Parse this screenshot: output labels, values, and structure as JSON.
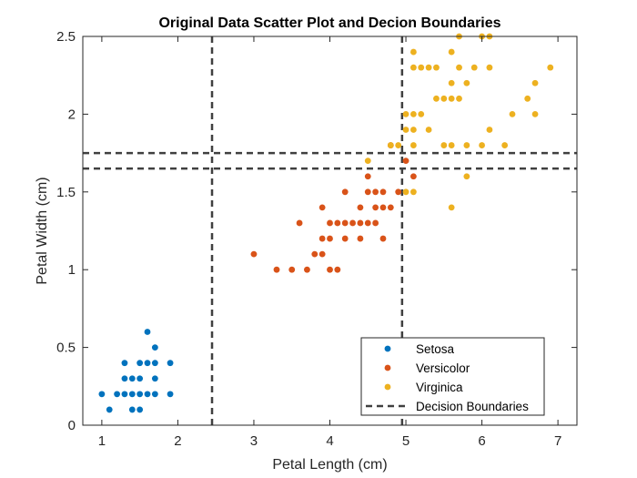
{
  "chart_data": {
    "type": "scatter",
    "title": "Original Data Scatter Plot and Decion Boundaries",
    "xlabel": "Petal Length (cm)",
    "ylabel": "Petal Width (cm)",
    "xlim": [
      0.75,
      7.25
    ],
    "ylim": [
      0,
      2.5
    ],
    "xticks": [
      "1",
      "2",
      "3",
      "4",
      "5",
      "6",
      "7"
    ],
    "yticks": [
      "0",
      "0.5",
      "1",
      "1.5",
      "2",
      "2.5"
    ],
    "grid": false,
    "legend_position": "bottom-right",
    "series": [
      {
        "name": "Setosa",
        "color": "#0072BD",
        "marker": "filled-circle",
        "points": [
          [
            1.0,
            0.2
          ],
          [
            1.1,
            0.1
          ],
          [
            1.2,
            0.2
          ],
          [
            1.3,
            0.2
          ],
          [
            1.3,
            0.3
          ],
          [
            1.3,
            0.4
          ],
          [
            1.4,
            0.1
          ],
          [
            1.4,
            0.2
          ],
          [
            1.4,
            0.3
          ],
          [
            1.5,
            0.1
          ],
          [
            1.5,
            0.2
          ],
          [
            1.5,
            0.3
          ],
          [
            1.5,
            0.4
          ],
          [
            1.6,
            0.2
          ],
          [
            1.6,
            0.4
          ],
          [
            1.6,
            0.6
          ],
          [
            1.7,
            0.2
          ],
          [
            1.7,
            0.3
          ],
          [
            1.7,
            0.4
          ],
          [
            1.7,
            0.5
          ],
          [
            1.9,
            0.2
          ],
          [
            1.9,
            0.4
          ]
        ]
      },
      {
        "name": "Versicolor",
        "color": "#D95319",
        "marker": "filled-circle",
        "points": [
          [
            3.0,
            1.1
          ],
          [
            3.3,
            1.0
          ],
          [
            3.5,
            1.0
          ],
          [
            3.6,
            1.3
          ],
          [
            3.7,
            1.0
          ],
          [
            3.8,
            1.1
          ],
          [
            3.9,
            1.1
          ],
          [
            3.9,
            1.2
          ],
          [
            3.9,
            1.4
          ],
          [
            4.0,
            1.0
          ],
          [
            4.0,
            1.2
          ],
          [
            4.0,
            1.3
          ],
          [
            4.1,
            1.0
          ],
          [
            4.1,
            1.3
          ],
          [
            4.2,
            1.2
          ],
          [
            4.2,
            1.3
          ],
          [
            4.2,
            1.5
          ],
          [
            4.3,
            1.3
          ],
          [
            4.4,
            1.2
          ],
          [
            4.4,
            1.3
          ],
          [
            4.4,
            1.4
          ],
          [
            4.5,
            1.3
          ],
          [
            4.5,
            1.5
          ],
          [
            4.5,
            1.6
          ],
          [
            4.6,
            1.3
          ],
          [
            4.6,
            1.4
          ],
          [
            4.6,
            1.5
          ],
          [
            4.7,
            1.2
          ],
          [
            4.7,
            1.4
          ],
          [
            4.7,
            1.5
          ],
          [
            4.8,
            1.4
          ],
          [
            4.8,
            1.8
          ],
          [
            4.9,
            1.5
          ],
          [
            5.0,
            1.7
          ],
          [
            5.1,
            1.6
          ]
        ]
      },
      {
        "name": "Virginica",
        "color": "#EDB120",
        "marker": "filled-circle",
        "points": [
          [
            4.5,
            1.7
          ],
          [
            4.8,
            1.8
          ],
          [
            4.9,
            1.8
          ],
          [
            5.0,
            1.5
          ],
          [
            5.0,
            1.9
          ],
          [
            5.0,
            2.0
          ],
          [
            5.1,
            1.5
          ],
          [
            5.1,
            1.8
          ],
          [
            5.1,
            1.9
          ],
          [
            5.1,
            2.0
          ],
          [
            5.1,
            2.3
          ],
          [
            5.1,
            2.4
          ],
          [
            5.2,
            2.0
          ],
          [
            5.2,
            2.3
          ],
          [
            5.3,
            1.9
          ],
          [
            5.3,
            2.3
          ],
          [
            5.4,
            2.1
          ],
          [
            5.4,
            2.3
          ],
          [
            5.5,
            1.8
          ],
          [
            5.5,
            2.1
          ],
          [
            5.6,
            1.4
          ],
          [
            5.6,
            1.8
          ],
          [
            5.6,
            2.1
          ],
          [
            5.6,
            2.2
          ],
          [
            5.6,
            2.4
          ],
          [
            5.7,
            2.1
          ],
          [
            5.7,
            2.3
          ],
          [
            5.7,
            2.5
          ],
          [
            5.8,
            1.6
          ],
          [
            5.8,
            1.8
          ],
          [
            5.8,
            2.2
          ],
          [
            5.9,
            2.3
          ],
          [
            6.0,
            1.8
          ],
          [
            6.0,
            2.5
          ],
          [
            6.1,
            1.9
          ],
          [
            6.1,
            2.3
          ],
          [
            6.1,
            2.5
          ],
          [
            6.3,
            1.8
          ],
          [
            6.4,
            2.0
          ],
          [
            6.6,
            2.1
          ],
          [
            6.7,
            2.0
          ],
          [
            6.7,
            2.2
          ],
          [
            6.9,
            2.3
          ]
        ]
      }
    ],
    "decision_boundaries": {
      "name": "Decision Boundaries",
      "color": "#404040",
      "style": "dashed",
      "vertical_x": [
        2.45,
        4.95
      ],
      "horizontal_y": [
        1.65,
        1.75
      ]
    }
  }
}
